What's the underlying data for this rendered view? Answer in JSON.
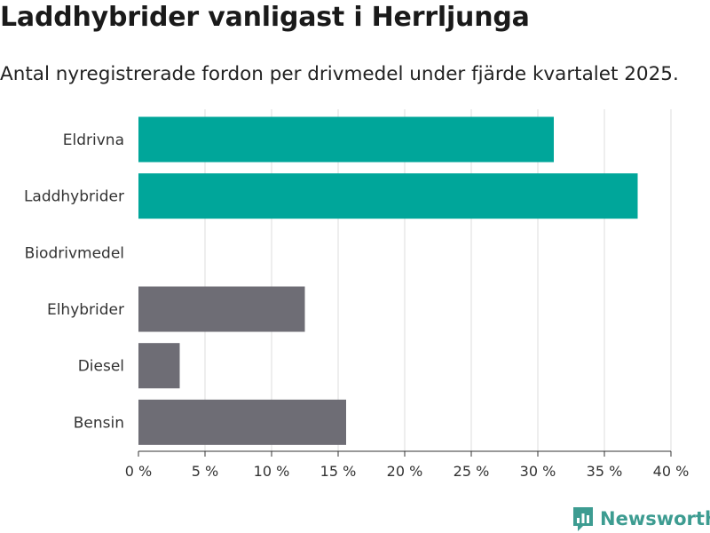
{
  "header": {
    "title": "Laddhybrider vanligast i Herrljunga",
    "subtitle": "Antal nyregistrerade fordon per drivmedel under fjärde kvartalet 2025."
  },
  "branding": {
    "name": "Newsworthy",
    "color": "#3d9c91"
  },
  "colors": {
    "highlight": "#00a69a",
    "other": "#6e6d75",
    "grid": "#dddddd",
    "axis": "#333333"
  },
  "chart_data": {
    "type": "bar",
    "orientation": "horizontal",
    "title": "Laddhybrider vanligast i Herrljunga",
    "subtitle": "Antal nyregistrerade fordon per drivmedel under fjärde kvartalet 2025.",
    "xlabel": "",
    "ylabel": "",
    "categories": [
      "Eldrivna",
      "Laddhybrider",
      "Biodrivmedel",
      "Elhybrider",
      "Diesel",
      "Bensin"
    ],
    "values": [
      31.2,
      37.5,
      0,
      12.5,
      3.1,
      15.6
    ],
    "highlighted": [
      true,
      true,
      false,
      false,
      false,
      false
    ],
    "xlim": [
      0,
      40
    ],
    "ticks": [
      0,
      5,
      10,
      15,
      20,
      25,
      30,
      35,
      40
    ],
    "tick_labels": [
      "0 %",
      "5 %",
      "10 %",
      "15 %",
      "20 %",
      "25 %",
      "30 %",
      "35 %",
      "40 %"
    ],
    "grid": true,
    "legend": "none"
  }
}
